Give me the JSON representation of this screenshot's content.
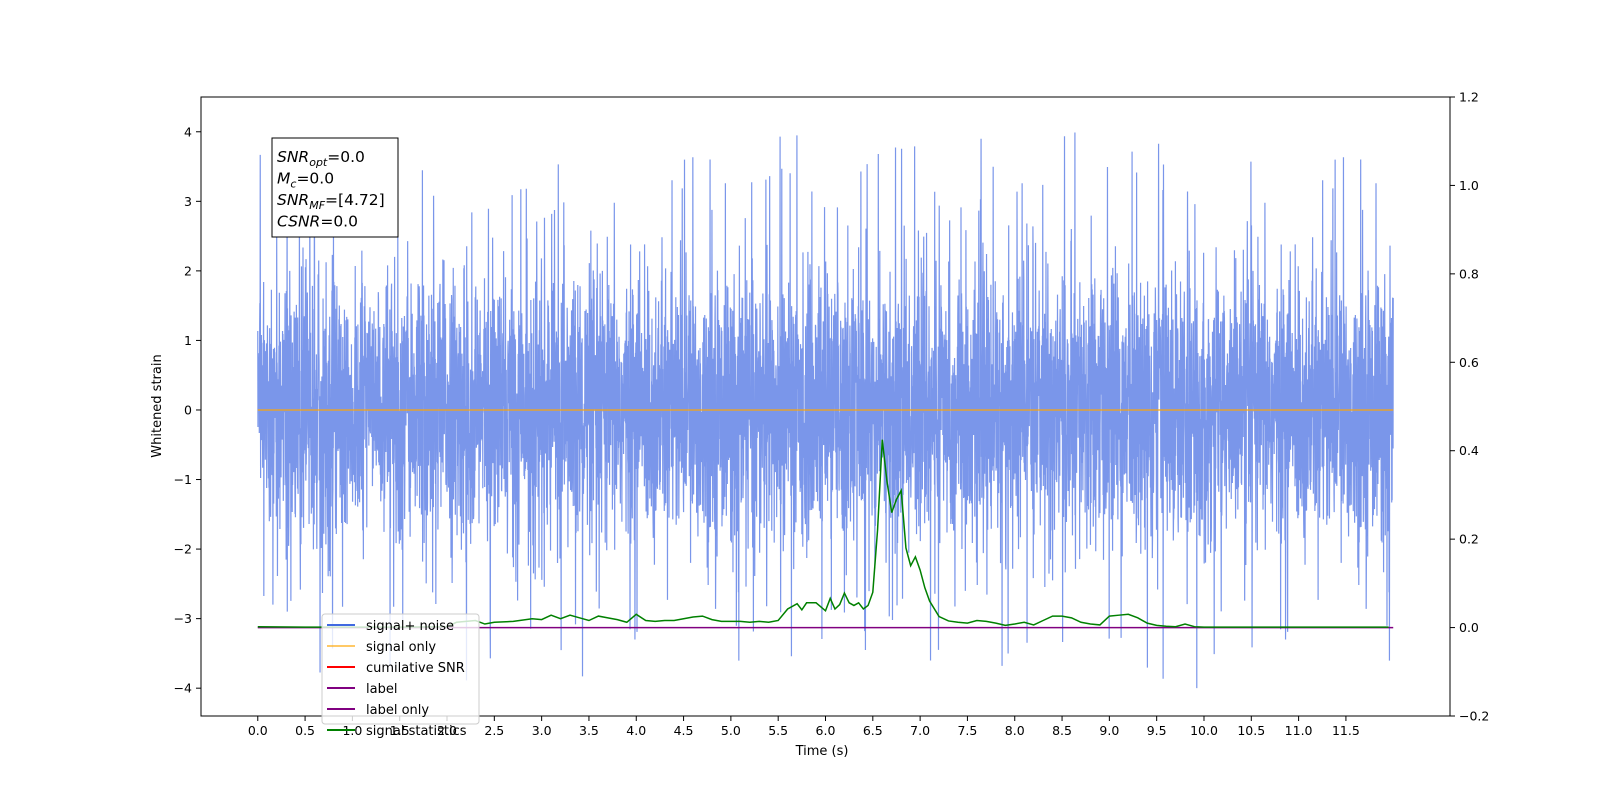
{
  "chart_data": {
    "type": "line",
    "title": "",
    "xlabel": "Time (s)",
    "ylabel": "Whitened strain",
    "xlim": [
      -0.6,
      12.6
    ],
    "ylim": [
      -4.4,
      4.5
    ],
    "y2lim": [
      -0.2,
      1.2
    ],
    "x_tick_labels": [
      "0.0",
      "0.5",
      "1.0",
      "1.5",
      "2.0",
      "2.5",
      "3.0",
      "3.5",
      "4.0",
      "4.5",
      "5.0",
      "5.5",
      "6.0",
      "6.5",
      "7.0",
      "7.5",
      "8.0",
      "8.5",
      "9.0",
      "9.5",
      "10.0",
      "10.5",
      "11.0",
      "11.5"
    ],
    "y_tick_labels": [
      "4",
      "3",
      "2",
      "1",
      "0",
      "−1",
      "−2",
      "−3",
      "−4"
    ],
    "y2_tick_labels": [
      "1.2",
      "1.0",
      "0.8",
      "0.6",
      "0.4",
      "0.2",
      "0.0",
      "−0.2"
    ],
    "grid": false,
    "legend_placement": "lower-left",
    "series": [
      {
        "name": "signal+ noise",
        "color": "#4169e1",
        "axis": "left",
        "x_range": [
          0,
          12
        ],
        "envelope_typical": [
          -2.0,
          2.2
        ],
        "extremes": [
          -4.0,
          4.1
        ]
      },
      {
        "name": "signal only",
        "color": "#ffa500",
        "axis": "left",
        "x": [
          0,
          12
        ],
        "values": [
          0,
          0
        ]
      },
      {
        "name": "cumilative SNR",
        "color": "#ff0000",
        "axis": "right",
        "x": [],
        "values": []
      },
      {
        "name": "label",
        "color": "#800080",
        "axis": "right",
        "x": [
          0,
          12
        ],
        "values": [
          0,
          0
        ]
      },
      {
        "name": "label only",
        "color": "#ffffff",
        "axis": "right",
        "x": [],
        "values": []
      },
      {
        "name": "signal statistics",
        "color": "#008000",
        "axis": "right",
        "x": [
          0.0,
          0.5,
          1.0,
          1.5,
          2.0,
          2.1,
          2.3,
          2.4,
          2.5,
          2.7,
          2.9,
          3.0,
          3.1,
          3.2,
          3.3,
          3.4,
          3.5,
          3.6,
          3.7,
          3.8,
          3.9,
          4.0,
          4.1,
          4.2,
          4.3,
          4.4,
          4.5,
          4.6,
          4.7,
          4.8,
          4.9,
          5.0,
          5.1,
          5.2,
          5.3,
          5.4,
          5.5,
          5.6,
          5.7,
          5.75,
          5.8,
          5.9,
          6.0,
          6.05,
          6.1,
          6.15,
          6.2,
          6.25,
          6.3,
          6.35,
          6.4,
          6.45,
          6.5,
          6.55,
          6.6,
          6.65,
          6.7,
          6.75,
          6.8,
          6.85,
          6.9,
          6.95,
          7.0,
          7.05,
          7.1,
          7.2,
          7.3,
          7.4,
          7.5,
          7.6,
          7.7,
          7.8,
          7.9,
          8.0,
          8.1,
          8.2,
          8.3,
          8.4,
          8.5,
          8.6,
          8.7,
          8.8,
          8.9,
          9.0,
          9.1,
          9.2,
          9.3,
          9.4,
          9.5,
          9.6,
          9.7,
          9.8,
          9.9,
          10.0,
          10.5,
          11.0,
          11.5,
          11.95
        ],
        "values": [
          0.002,
          0.001,
          0.001,
          0.001,
          0.002,
          0.012,
          0.016,
          0.008,
          0.012,
          0.014,
          0.02,
          0.018,
          0.028,
          0.02,
          0.028,
          0.022,
          0.016,
          0.026,
          0.022,
          0.018,
          0.012,
          0.03,
          0.016,
          0.014,
          0.016,
          0.016,
          0.02,
          0.024,
          0.026,
          0.018,
          0.014,
          0.014,
          0.014,
          0.012,
          0.014,
          0.012,
          0.016,
          0.042,
          0.054,
          0.04,
          0.056,
          0.056,
          0.038,
          0.066,
          0.042,
          0.052,
          0.078,
          0.056,
          0.05,
          0.056,
          0.042,
          0.05,
          0.08,
          0.22,
          0.425,
          0.33,
          0.26,
          0.29,
          0.31,
          0.18,
          0.14,
          0.16,
          0.13,
          0.09,
          0.06,
          0.025,
          0.015,
          0.012,
          0.01,
          0.016,
          0.014,
          0.01,
          0.005,
          0.008,
          0.012,
          0.006,
          0.016,
          0.026,
          0.026,
          0.022,
          0.012,
          0.008,
          0.006,
          0.026,
          0.028,
          0.03,
          0.022,
          0.01,
          0.005,
          0.003,
          0.002,
          0.008,
          0.002,
          0.001,
          0.001,
          0.001,
          0.001,
          0.001
        ]
      }
    ],
    "annotation_lines": [
      {
        "var": "SNR",
        "sub": "opt",
        "value": "=0.0"
      },
      {
        "var": "M",
        "sub": "c",
        "value": "=0.0"
      },
      {
        "var": "SNR",
        "sub": "MF",
        "value": "=[4.72]"
      },
      {
        "var": "CSNR",
        "sub": "",
        "value": "=0.0"
      }
    ]
  }
}
